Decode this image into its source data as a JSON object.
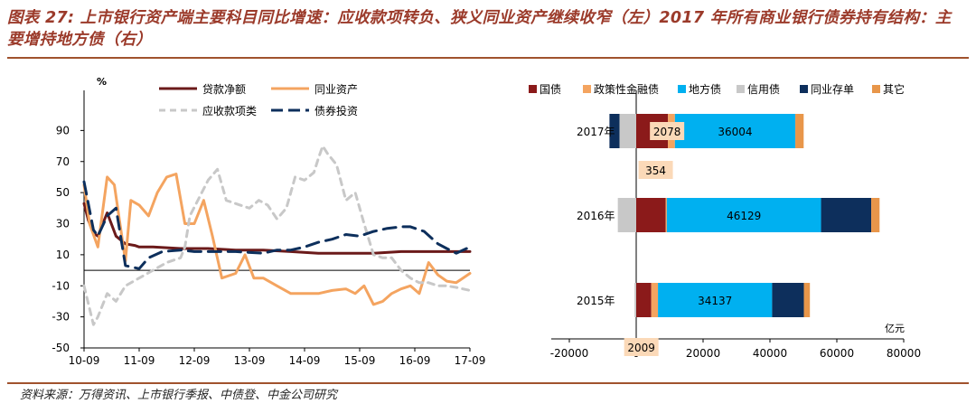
{
  "title": "图表 27: 上市银行资产端主要科目同比增速：应收款项转负、狭义同业资产继续收窄（左）2017 年所有商业银行债券持有结构：主要增持地方债（右）",
  "source": "资料来源：万得资讯、上市银行季报、中债登、中金公司研究",
  "chart_data": [
    {
      "type": "line",
      "yunit": "%",
      "ylim": [
        -50,
        100
      ],
      "yticks": [
        90,
        70,
        50,
        30,
        10,
        -10,
        -30,
        -50
      ],
      "x_tick_labels": [
        "10-09",
        "11-09",
        "12-09",
        "13-09",
        "14-09",
        "15-09",
        "16-09",
        "17-09"
      ],
      "legend_position": "top",
      "series": [
        {
          "name": "贷款净额",
          "color": "#6b1a1a",
          "dash": "solid",
          "x": [
            2010.75,
            2010.83,
            2010.92,
            2011.0,
            2011.17,
            2011.33,
            2011.5,
            2011.67,
            2011.75,
            2012.0,
            2012.5,
            2012.75,
            2013.0,
            2013.5,
            2014.0,
            2014.5,
            2015.0,
            2015.5,
            2016.0,
            2016.5,
            2017.0,
            2017.5,
            2017.75
          ],
          "y": [
            43,
            32,
            24,
            22,
            37,
            22,
            17,
            16,
            15,
            15,
            14,
            14,
            14,
            13,
            13,
            12,
            11,
            11,
            11,
            12,
            12,
            12,
            12
          ]
        },
        {
          "name": "同业资产",
          "color": "#f4a460",
          "dash": "solid",
          "x": [
            2010.75,
            2010.85,
            2011.0,
            2011.17,
            2011.3,
            2011.5,
            2011.6,
            2011.75,
            2011.92,
            2012.08,
            2012.25,
            2012.42,
            2012.58,
            2012.75,
            2012.92,
            2013.08,
            2013.25,
            2013.5,
            2013.67,
            2013.83,
            2014.0,
            2014.25,
            2014.5,
            2014.75,
            2015.0,
            2015.25,
            2015.5,
            2015.67,
            2015.83,
            2016.0,
            2016.17,
            2016.33,
            2016.5,
            2016.67,
            2016.83,
            2017.0,
            2017.17,
            2017.33,
            2017.5,
            2017.75
          ],
          "y": [
            55,
            30,
            15,
            60,
            55,
            6,
            45,
            42,
            35,
            50,
            60,
            62,
            30,
            30,
            45,
            22,
            -5,
            -2,
            10,
            -5,
            -5,
            -10,
            -15,
            -15,
            -15,
            -13,
            -12,
            -15,
            -10,
            -22,
            -20,
            -15,
            -12,
            -10,
            -15,
            5,
            -3,
            -7,
            -8,
            -2
          ]
        },
        {
          "name": "应收款项类",
          "color": "#c8c8c8",
          "dash": "dashed",
          "x": [
            2010.75,
            2010.92,
            2011.0,
            2011.17,
            2011.33,
            2011.5,
            2011.75,
            2012.0,
            2012.25,
            2012.5,
            2012.58,
            2012.67,
            2013.0,
            2013.17,
            2013.33,
            2013.58,
            2013.75,
            2013.92,
            2014.08,
            2014.25,
            2014.42,
            2014.58,
            2014.75,
            2014.92,
            2015.0,
            2015.08,
            2015.17,
            2015.33,
            2015.5,
            2015.67,
            2015.83,
            2016.0,
            2016.17,
            2016.33,
            2016.5,
            2016.67,
            2016.83,
            2017.0,
            2017.17,
            2017.33,
            2017.5,
            2017.75
          ],
          "y": [
            -10,
            -35,
            -30,
            -15,
            -20,
            -10,
            -5,
            0,
            5,
            8,
            15,
            35,
            58,
            65,
            45,
            42,
            40,
            45,
            42,
            33,
            40,
            60,
            58,
            63,
            72,
            80,
            75,
            68,
            45,
            50,
            30,
            10,
            8,
            8,
            0,
            -5,
            -8,
            -8,
            -10,
            -10,
            -11,
            -13
          ]
        },
        {
          "name": "债券投资",
          "color": "#0d2f5c",
          "dash": "dashed",
          "x": [
            2010.75,
            2010.92,
            2011.0,
            2011.17,
            2011.33,
            2011.5,
            2011.75,
            2011.92,
            2012.17,
            2012.5,
            2012.75,
            2013.0,
            2013.5,
            2014.0,
            2014.25,
            2014.5,
            2014.75,
            2015.0,
            2015.25,
            2015.5,
            2015.75,
            2016.0,
            2016.25,
            2016.5,
            2016.67,
            2016.92,
            2017.17,
            2017.33,
            2017.5,
            2017.75
          ],
          "y": [
            57,
            26,
            22,
            35,
            40,
            3,
            1,
            8,
            12,
            13,
            12,
            12,
            12,
            11,
            13,
            13,
            15,
            18,
            20,
            23,
            22,
            25,
            27,
            28,
            28,
            25,
            17,
            14,
            11,
            15
          ]
        }
      ]
    },
    {
      "type": "bar",
      "orientation": "horizontal",
      "stacked": true,
      "xlim": [
        -20000,
        80000
      ],
      "xticks": [
        -20000,
        0,
        20000,
        40000,
        60000,
        80000
      ],
      "xunit": "亿元",
      "categories": [
        "2017年",
        "2016年",
        "2015年"
      ],
      "legend_position": "top",
      "series": [
        {
          "name": "国债",
          "color": "#8b1a1a",
          "values": [
            9500,
            8800,
            4500
          ]
        },
        {
          "name": "政策性金融债",
          "color": "#f4a460",
          "values": [
            2078,
            354,
            2009
          ]
        },
        {
          "name": "地方债",
          "color": "#00b0f0",
          "values": [
            36004,
            46129,
            34137
          ]
        },
        {
          "name": "信用债",
          "color": "#c8c8c8",
          "values": [
            -5000,
            -5500,
            -500
          ]
        },
        {
          "name": "同业存单",
          "color": "#0d2f5c",
          "values": [
            -3000,
            15000,
            9500
          ]
        },
        {
          "name": "其它",
          "color": "#e8964a",
          "values": [
            2500,
            2500,
            1800
          ]
        }
      ],
      "data_labels": {
        "2017年": {
          "政策性金融债": "2078",
          "地方债": "36004"
        },
        "2016年": {
          "政策性金融债": "354",
          "地方债": "46129"
        },
        "2015年": {
          "政策性金融债": "2009",
          "地方债": "34137"
        }
      }
    }
  ]
}
